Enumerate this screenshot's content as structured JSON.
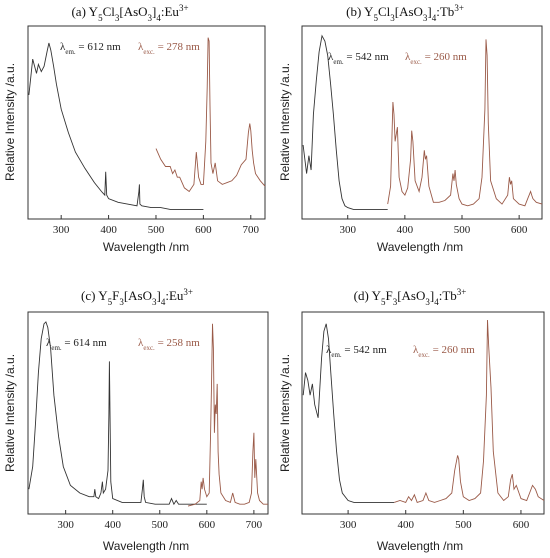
{
  "chart_data": [
    {
      "type": "line",
      "title": "(a) Y5Cl3[AsO3]4:Eu3+",
      "xlabel": "Wavelength /nm",
      "ylabel": "Relative Intensity /a.u.",
      "xlim": [
        230,
        730
      ],
      "xticks": [
        300,
        400,
        500,
        600,
        700
      ],
      "grid": false,
      "annotations": [
        {
          "text": "λem. = 612 nm",
          "color": "#222222"
        },
        {
          "text": "λexc. = 278 nm",
          "color": "#9a5a48"
        }
      ],
      "series": [
        {
          "color": "#333333",
          "x": [
            232,
            240,
            248,
            252,
            258,
            264,
            270,
            274,
            278,
            284,
            290,
            300,
            315,
            330,
            350,
            370,
            385,
            392,
            394,
            396,
            400,
            420,
            440,
            460,
            464,
            465,
            466,
            470,
            490,
            510,
            530,
            550,
            560,
            580,
            600
          ],
          "y": [
            0.66,
            0.86,
            0.78,
            0.83,
            0.79,
            0.82,
            0.9,
            0.95,
            0.91,
            0.82,
            0.72,
            0.58,
            0.45,
            0.34,
            0.25,
            0.17,
            0.12,
            0.1,
            0.23,
            0.1,
            0.08,
            0.06,
            0.05,
            0.04,
            0.12,
            0.16,
            0.05,
            0.04,
            0.03,
            0.03,
            0.02,
            0.02,
            0.02,
            0.02,
            0.02
          ]
        },
        {
          "color": "#9a5a48",
          "x": [
            500,
            510,
            520,
            530,
            535,
            540,
            545,
            550,
            560,
            570,
            580,
            585,
            590,
            595,
            600,
            605,
            608,
            610,
            612,
            614,
            616,
            620,
            625,
            630,
            640,
            650,
            660,
            670,
            680,
            690,
            695,
            698,
            700,
            703,
            706,
            710,
            720,
            730
          ],
          "y": [
            0.36,
            0.3,
            0.26,
            0.26,
            0.22,
            0.24,
            0.2,
            0.2,
            0.14,
            0.12,
            0.16,
            0.34,
            0.2,
            0.16,
            0.16,
            0.4,
            0.7,
            0.98,
            0.96,
            0.6,
            0.28,
            0.22,
            0.28,
            0.18,
            0.16,
            0.17,
            0.18,
            0.21,
            0.27,
            0.3,
            0.45,
            0.5,
            0.46,
            0.35,
            0.28,
            0.22,
            0.18,
            0.15
          ]
        }
      ]
    },
    {
      "type": "line",
      "title": "(b) Y5Cl3[AsO3]4:Tb3+",
      "xlabel": "Wavelength /nm",
      "ylabel": "Relative Intensity /a.u.",
      "xlim": [
        220,
        640
      ],
      "xticks": [
        300,
        400,
        500,
        600
      ],
      "grid": false,
      "annotations": [
        {
          "text": "λem. = 542 nm",
          "color": "#222222"
        },
        {
          "text": "λexc. = 260 nm",
          "color": "#9a5a48"
        }
      ],
      "series": [
        {
          "color": "#333333",
          "x": [
            222,
            228,
            232,
            236,
            240,
            245,
            250,
            255,
            260,
            265,
            270,
            275,
            280,
            285,
            290,
            295,
            300,
            310,
            320,
            330,
            340,
            350,
            360,
            370
          ],
          "y": [
            0.38,
            0.22,
            0.32,
            0.24,
            0.55,
            0.74,
            0.9,
            0.99,
            0.96,
            0.88,
            0.72,
            0.55,
            0.35,
            0.18,
            0.08,
            0.04,
            0.03,
            0.02,
            0.02,
            0.02,
            0.02,
            0.02,
            0.02,
            0.02
          ]
        },
        {
          "color": "#9a5a48",
          "x": [
            370,
            375,
            379,
            381,
            383,
            387,
            390,
            395,
            400,
            405,
            410,
            412,
            414,
            418,
            425,
            430,
            434,
            436,
            438,
            442,
            450,
            460,
            470,
            480,
            484,
            486,
            488,
            490,
            495,
            500,
            510,
            520,
            530,
            535,
            540,
            542,
            544,
            546,
            550,
            560,
            570,
            580,
            583,
            585,
            587,
            590,
            600,
            610,
            615,
            620,
            622,
            624,
            630,
            640
          ],
          "y": [
            0.05,
            0.15,
            0.62,
            0.55,
            0.4,
            0.48,
            0.2,
            0.12,
            0.1,
            0.14,
            0.3,
            0.46,
            0.4,
            0.18,
            0.12,
            0.2,
            0.35,
            0.3,
            0.32,
            0.15,
            0.06,
            0.06,
            0.07,
            0.1,
            0.22,
            0.18,
            0.24,
            0.16,
            0.08,
            0.05,
            0.04,
            0.05,
            0.08,
            0.2,
            0.58,
            0.97,
            0.88,
            0.5,
            0.18,
            0.08,
            0.05,
            0.1,
            0.2,
            0.16,
            0.18,
            0.08,
            0.05,
            0.04,
            0.08,
            0.12,
            0.1,
            0.08,
            0.06,
            0.05
          ]
        }
      ]
    },
    {
      "type": "line",
      "title": "(c) Y5F3[AsO3]4:Eu3+",
      "xlabel": "Wavelength /nm",
      "ylabel": "Relative Intensity /a.u.",
      "xlim": [
        220,
        730
      ],
      "xticks": [
        300,
        400,
        500,
        600,
        700
      ],
      "grid": false,
      "annotations": [
        {
          "text": "λem. = 614 nm",
          "color": "#222222"
        },
        {
          "text": "λexc. = 258 nm",
          "color": "#9a5a48"
        }
      ],
      "series": [
        {
          "color": "#333333",
          "x": [
            222,
            230,
            236,
            242,
            248,
            254,
            258,
            262,
            268,
            275,
            285,
            295,
            310,
            330,
            350,
            360,
            362,
            364,
            370,
            375,
            378,
            380,
            385,
            390,
            392,
            393,
            394,
            396,
            400,
            420,
            440,
            460,
            463,
            465,
            467,
            470,
            490,
            500,
            520,
            525,
            530,
            535,
            540,
            560,
            580,
            600
          ],
          "y": [
            0.1,
            0.22,
            0.45,
            0.72,
            0.9,
            0.98,
            0.99,
            0.96,
            0.85,
            0.6,
            0.38,
            0.22,
            0.12,
            0.08,
            0.06,
            0.06,
            0.1,
            0.06,
            0.05,
            0.08,
            0.14,
            0.08,
            0.1,
            0.2,
            0.5,
            0.78,
            0.55,
            0.14,
            0.05,
            0.03,
            0.03,
            0.03,
            0.1,
            0.15,
            0.06,
            0.03,
            0.02,
            0.02,
            0.02,
            0.05,
            0.02,
            0.04,
            0.02,
            0.02,
            0.02,
            0.02
          ]
        },
        {
          "color": "#9a5a48",
          "x": [
            560,
            575,
            585,
            588,
            590,
            592,
            595,
            600,
            605,
            608,
            610,
            612,
            614,
            616,
            618,
            620,
            622,
            624,
            626,
            630,
            640,
            650,
            655,
            660,
            670,
            680,
            690,
            695,
            698,
            700,
            702,
            704,
            708,
            712,
            720,
            730
          ],
          "y": [
            0.01,
            0.02,
            0.04,
            0.14,
            0.1,
            0.16,
            0.1,
            0.06,
            0.08,
            0.4,
            0.65,
            0.98,
            0.85,
            0.4,
            0.55,
            0.5,
            0.66,
            0.3,
            0.18,
            0.08,
            0.04,
            0.03,
            0.08,
            0.03,
            0.02,
            0.02,
            0.03,
            0.08,
            0.3,
            0.4,
            0.16,
            0.26,
            0.08,
            0.04,
            0.02,
            0.02
          ]
        }
      ]
    },
    {
      "type": "line",
      "title": "(d) Y5F3[AsO3]4:Tb3+",
      "xlabel": "Wavelength /nm",
      "ylabel": "Relative Intensity /a.u.",
      "xlim": [
        220,
        640
      ],
      "xticks": [
        300,
        400,
        500,
        600
      ],
      "grid": false,
      "annotations": [
        {
          "text": "λem. = 542 nm",
          "color": "#222222"
        },
        {
          "text": "λexc. = 260 nm",
          "color": "#9a5a48"
        }
      ],
      "series": [
        {
          "color": "#333333",
          "x": [
            222,
            226,
            230,
            234,
            238,
            242,
            248,
            254,
            258,
            262,
            266,
            270,
            275,
            280,
            285,
            290,
            300,
            310,
            320,
            330,
            340,
            350,
            360,
            370,
            380
          ],
          "y": [
            0.6,
            0.72,
            0.68,
            0.6,
            0.66,
            0.55,
            0.48,
            0.8,
            0.94,
            0.98,
            0.9,
            0.72,
            0.5,
            0.3,
            0.15,
            0.08,
            0.04,
            0.03,
            0.03,
            0.03,
            0.03,
            0.03,
            0.03,
            0.03,
            0.03
          ]
        },
        {
          "color": "#9a5a48",
          "x": [
            380,
            390,
            400,
            405,
            410,
            415,
            420,
            430,
            435,
            440,
            450,
            460,
            470,
            480,
            485,
            490,
            492,
            495,
            500,
            510,
            520,
            530,
            535,
            540,
            542,
            544,
            548,
            552,
            560,
            570,
            578,
            582,
            585,
            588,
            592,
            600,
            610,
            615,
            620,
            625,
            630,
            640
          ],
          "y": [
            0.03,
            0.04,
            0.03,
            0.06,
            0.04,
            0.07,
            0.03,
            0.04,
            0.08,
            0.04,
            0.03,
            0.04,
            0.05,
            0.08,
            0.2,
            0.28,
            0.26,
            0.14,
            0.06,
            0.04,
            0.05,
            0.08,
            0.25,
            0.6,
            1.0,
            0.86,
            0.64,
            0.3,
            0.08,
            0.04,
            0.06,
            0.15,
            0.18,
            0.1,
            0.12,
            0.05,
            0.04,
            0.08,
            0.12,
            0.1,
            0.06,
            0.04
          ]
        }
      ]
    }
  ]
}
